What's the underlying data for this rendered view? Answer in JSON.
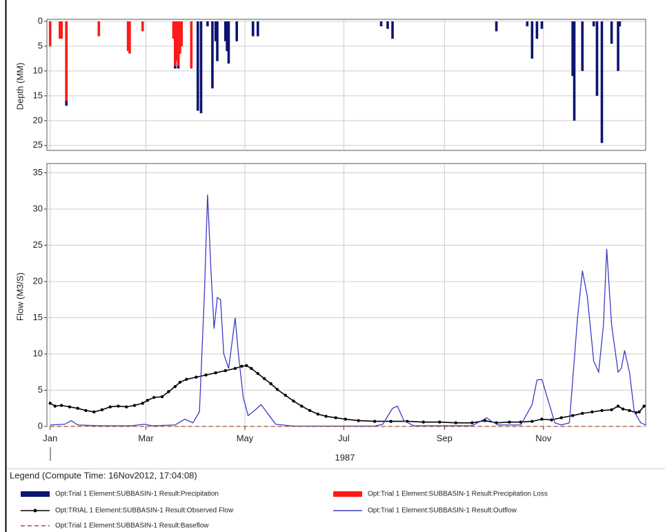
{
  "chart_data": [
    {
      "type": "bar",
      "ylabel": "Depth (MM)",
      "inverted": true,
      "ylim": [
        0,
        26
      ],
      "yticks": [
        0,
        5,
        10,
        15,
        20,
        25
      ],
      "xlim": [
        -2,
        367
      ],
      "grid": true,
      "series": [
        {
          "name": "Opt:Trial 1 Element:SUBBASIN-1 Result:Precipitation",
          "color": "#0b1470",
          "x": [
            10,
            77,
            79,
            91,
            93,
            97,
            100,
            102,
            103,
            108,
            109,
            110,
            115,
            125,
            128,
            204,
            208,
            211,
            275,
            294,
            297,
            300,
            303,
            322,
            323,
            328,
            335,
            337,
            340,
            346,
            350,
            351
          ],
          "values": [
            17,
            9.5,
            9.5,
            18,
            18.5,
            1,
            13.5,
            4,
            8,
            4,
            6,
            8.5,
            4,
            3,
            3,
            1,
            1.5,
            3.5,
            2,
            1,
            7.5,
            3.5,
            1.5,
            11,
            20,
            10,
            1,
            15,
            24.5,
            4.5,
            10,
            1
          ]
        },
        {
          "name": "Opt:Trial 1 Element:SUBBASIN-1 Result:Precipitation Loss",
          "color": "#ff1a1a",
          "x": [
            0,
            6,
            7,
            10,
            30,
            48,
            49,
            57,
            76,
            77,
            78,
            79,
            80,
            81,
            87
          ],
          "values": [
            5,
            3.5,
            3.5,
            16,
            3,
            6,
            6.5,
            2,
            3.5,
            9,
            8,
            9,
            6.5,
            5,
            9.5
          ]
        }
      ]
    },
    {
      "type": "line",
      "ylabel": "Flow (M3/S)",
      "xlabel": "1987",
      "ylim": [
        0,
        36
      ],
      "yticks": [
        0,
        5,
        10,
        15,
        20,
        25,
        30,
        35
      ],
      "xlim": [
        -2,
        367
      ],
      "grid": true,
      "xticks": [
        {
          "value": 0,
          "label": "Jan"
        },
        {
          "value": 59,
          "label": "Mar"
        },
        {
          "value": 120,
          "label": "May"
        },
        {
          "value": 181,
          "label": "Jul"
        },
        {
          "value": 243,
          "label": "Sep"
        },
        {
          "value": 304,
          "label": "Nov"
        }
      ],
      "series": [
        {
          "name": "Opt:TRIAL 1 Element:SUBBASIN-1 Result:Observed Flow",
          "color": "#000000",
          "marker": "dot",
          "x": [
            0,
            3,
            7,
            12,
            17,
            22,
            27,
            32,
            37,
            42,
            47,
            52,
            57,
            60,
            64,
            69,
            73,
            77,
            80,
            84,
            90,
            96,
            102,
            108,
            114,
            118,
            121,
            124,
            128,
            132,
            136,
            140,
            145,
            150,
            155,
            160,
            165,
            170,
            176,
            182,
            190,
            200,
            210,
            220,
            230,
            240,
            250,
            260,
            268,
            275,
            283,
            290,
            297,
            303,
            309,
            315,
            322,
            328,
            334,
            340,
            346,
            350,
            353,
            357,
            361,
            363,
            366
          ],
          "values": [
            3.2,
            2.8,
            2.9,
            2.7,
            2.5,
            2.2,
            2.0,
            2.3,
            2.7,
            2.8,
            2.7,
            2.9,
            3.2,
            3.6,
            4.0,
            4.1,
            4.8,
            5.5,
            6.1,
            6.5,
            6.8,
            7.1,
            7.4,
            7.7,
            8.0,
            8.3,
            8.4,
            8.0,
            7.3,
            6.6,
            5.9,
            5.1,
            4.3,
            3.5,
            2.8,
            2.2,
            1.7,
            1.4,
            1.2,
            1.0,
            0.8,
            0.7,
            0.7,
            0.7,
            0.6,
            0.6,
            0.5,
            0.5,
            0.8,
            0.5,
            0.6,
            0.6,
            0.7,
            1.0,
            0.9,
            1.2,
            1.5,
            1.8,
            2.0,
            2.2,
            2.3,
            2.8,
            2.4,
            2.2,
            1.9,
            2.0,
            2.8
          ]
        },
        {
          "name": "Opt:Trial 1 Element:SUBBASIN-1 Result:Outflow",
          "color": "#3a3ac4",
          "x": [
            0,
            9,
            13,
            17,
            30,
            50,
            58,
            63,
            77,
            83,
            88,
            92,
            95,
            97,
            99,
            101,
            103,
            105,
            107,
            110,
            114,
            116,
            119,
            122,
            126,
            130,
            135,
            139,
            150,
            200,
            205,
            211,
            214,
            218,
            224,
            260,
            266,
            269,
            272,
            276,
            290,
            297,
            300,
            303,
            307,
            311,
            315,
            320,
            325,
            328,
            331,
            335,
            338,
            341,
            343,
            346,
            350,
            352,
            354,
            357,
            360,
            364,
            367
          ],
          "values": [
            0.2,
            0.3,
            0.8,
            0.2,
            0.1,
            0.1,
            0.3,
            0.1,
            0.2,
            1.0,
            0.5,
            2,
            18,
            32,
            22,
            13.5,
            17.8,
            17.5,
            10,
            8,
            15,
            10,
            4,
            1.5,
            2.2,
            3,
            1.5,
            0.3,
            0.05,
            0.05,
            0.3,
            2.5,
            2.8,
            0.8,
            0.1,
            0.1,
            0.8,
            1.2,
            0.7,
            0.2,
            0.2,
            3,
            6.4,
            6.5,
            3.5,
            0.5,
            0.2,
            0.5,
            15,
            21.5,
            18,
            9,
            7.5,
            14,
            24.5,
            14,
            7.5,
            8,
            10.5,
            7.5,
            2,
            0.5,
            0.2
          ]
        },
        {
          "name": "Opt:Trial 1 Element:SUBBASIN-1 Result:Baseflow",
          "color": "#a0522d",
          "style": "dashed",
          "x": [
            0,
            366
          ],
          "values": [
            0,
            0
          ]
        }
      ]
    }
  ],
  "legend": {
    "title": "Legend (Compute Time: 16Nov2012, 17:04:08)"
  }
}
